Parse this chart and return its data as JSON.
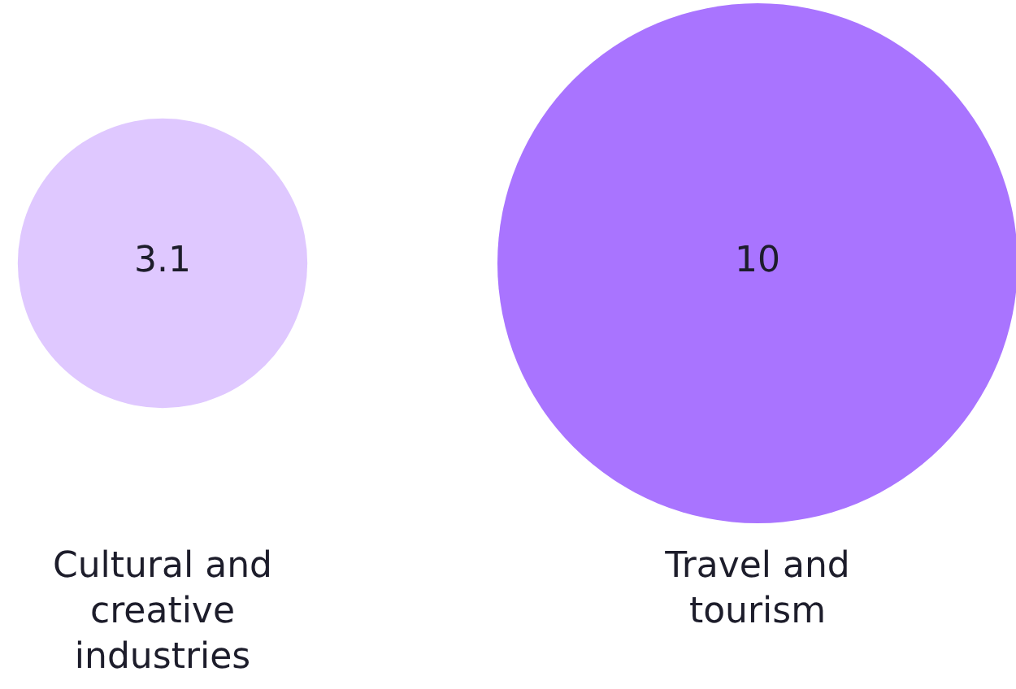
{
  "chart_data": {
    "type": "other",
    "categories": [
      "Cultural and creative industries",
      "Travel and tourism"
    ],
    "values": [
      3.1,
      10
    ],
    "colors": [
      "#dfc8ff",
      "#a974ff"
    ],
    "data_labels": true
  }
}
